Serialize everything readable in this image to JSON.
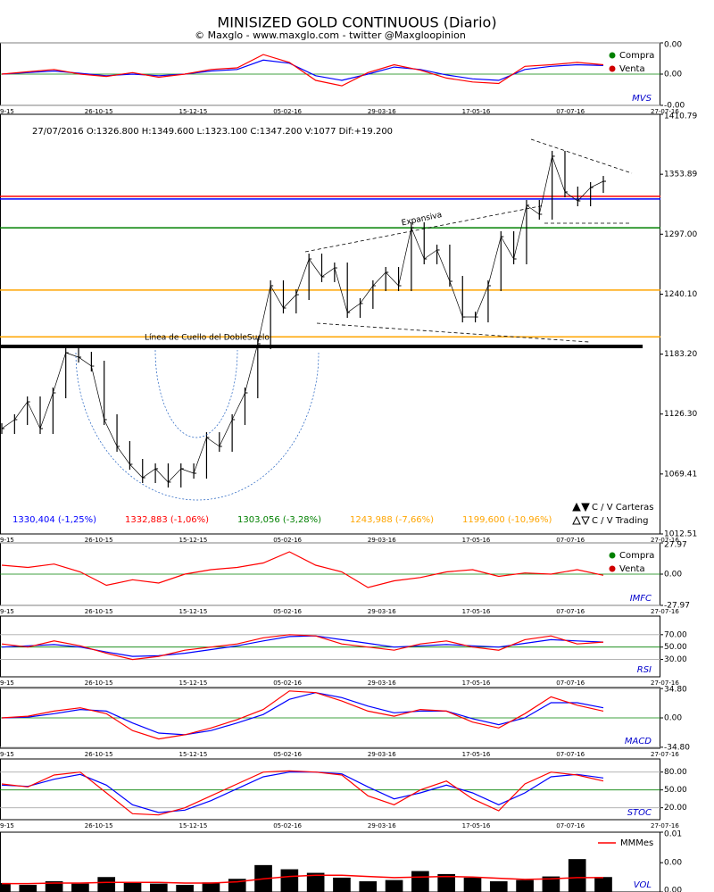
{
  "title": "MINISIZED GOLD CONTINUOUS (Diario)",
  "subtitle": "© Maxglo - www.maxglo.com - twitter @Maxgloopinion",
  "date_axis": [
    "9-15",
    "26-10-15",
    "15-12-15",
    "05-02-16",
    "29-03-16",
    "17-05-16",
    "07-07-16",
    "27-07-16"
  ],
  "chart_data": [
    {
      "type": "line",
      "title": "MVS",
      "ylim": [
        -0.004,
        0.004
      ],
      "yticks": [
        {
          "value": 0.004,
          "label": "0.00"
        },
        {
          "value": 0,
          "label": "0.00"
        },
        {
          "value": -0.004,
          "label": "-0.00"
        }
      ],
      "grid": true,
      "legend": [
        {
          "name": "Compra",
          "color": "#008000"
        },
        {
          "name": "Venta",
          "color": "#d00000"
        }
      ],
      "series": [
        {
          "color": "#0000ff",
          "values": [
            0.0,
            0.0002,
            0.0004,
            0.0001,
            -0.0002,
            0.0,
            -0.0002,
            0.0,
            0.0004,
            0.0006,
            0.0018,
            0.0014,
            -0.0002,
            -0.0008,
            0.0,
            0.0009,
            0.0006,
            -0.0001,
            -0.0006,
            -0.0008,
            0.0006,
            0.001,
            0.0012,
            0.0011
          ]
        },
        {
          "color": "#ff0000",
          "values": [
            0.0,
            0.0003,
            0.0006,
            0.0,
            -0.0003,
            0.0002,
            -0.0004,
            0.0,
            0.0006,
            0.0008,
            0.0025,
            0.0015,
            -0.0008,
            -0.0015,
            0.0002,
            0.0012,
            0.0005,
            -0.0005,
            -0.001,
            -0.0012,
            0.001,
            0.0012,
            0.0015,
            0.0012
          ]
        }
      ]
    },
    {
      "type": "price",
      "info": "27/07/2016  O:1326.800  H:1349.600  L:1323.100  C:1347.200  V:1077  Dif:+19.200",
      "ylim": [
        1012.51,
        1410.79
      ],
      "yticks": [
        1410.79,
        1353.89,
        {
          "value": 1297,
          "label": "1297.00"
        },
        {
          "value": 1240.1,
          "label": "1240.10"
        },
        {
          "value": 1183.2,
          "label": "1183.20"
        },
        {
          "value": 1126.3,
          "label": "1126.30"
        },
        1069.41,
        1012.51
      ],
      "grid": false,
      "color": "#000000",
      "values": [
        1112.5,
        1121.0,
        1137.9,
        1112.5,
        1146.4,
        1184.5,
        1180.3,
        1171.8,
        1121.0,
        1095.6,
        1078.6,
        1065.9,
        1074.4,
        1061.7,
        1074.4,
        1070.1,
        1104.0,
        1095.6,
        1121.0,
        1146.4,
        1193.0,
        1248.1,
        1226.9,
        1239.6,
        1273.5,
        1256.6,
        1265.0,
        1222.7,
        1231.2,
        1248.1,
        1260.8,
        1248.1,
        1303.2,
        1273.5,
        1282.0,
        1252.3,
        1218.4,
        1218.4,
        1248.1,
        1294.7,
        1273.5,
        1324.4,
        1315.9,
        1371.0,
        1337.1,
        1328.6,
        1341.3,
        1347.2
      ],
      "levels": [
        {
          "value": 1330.404,
          "label": "1330,404 (-1,25%)",
          "color": "#0000ff"
        },
        {
          "value": 1332.883,
          "label": "1332,883 (-1,06%)",
          "color": "#ff0000"
        },
        {
          "value": 1303.056,
          "label": "1303,056 (-3,28%)",
          "color": "#008000"
        },
        {
          "value": 1243.988,
          "label": "1243,988 (-7,66%)",
          "color": "#ffa500"
        },
        {
          "value": 1199.6,
          "label": "1199,600 (-10,96%)",
          "color": "#ffa500"
        }
      ],
      "annotations": [
        "Expansiva",
        "Línea de Cuello del DobleSuelo"
      ],
      "legend": [
        "C / V Carteras",
        "C / V Trading"
      ]
    },
    {
      "type": "line",
      "title": "IMFC",
      "ylim": [
        -27.97,
        27.97
      ],
      "yticks": [
        27.97,
        {
          "value": 0,
          "label": "0.00"
        },
        -27.97
      ],
      "grid": true,
      "legend": [
        {
          "name": "Compra",
          "color": "#008000"
        },
        {
          "name": "Venta",
          "color": "#d00000"
        }
      ],
      "series": [
        {
          "color": "#ff0000",
          "values": [
            8,
            6,
            9,
            2,
            -10,
            -5,
            -8,
            0,
            4,
            6,
            10,
            20,
            8,
            2,
            -12,
            -6,
            -3,
            2,
            4,
            -2,
            1,
            0,
            4,
            -1
          ]
        }
      ]
    },
    {
      "type": "line",
      "title": "RSI",
      "ylim": [
        2,
        100
      ],
      "yticks": [
        {
          "value": 70,
          "label": "70.00"
        },
        {
          "value": 50,
          "label": "50.00"
        },
        {
          "value": 30,
          "label": "30.00"
        }
      ],
      "grid": true,
      "series": [
        {
          "color": "#0000ff",
          "values": [
            50,
            52,
            54,
            50,
            42,
            35,
            36,
            40,
            46,
            52,
            60,
            67,
            68,
            62,
            56,
            50,
            52,
            54,
            52,
            50,
            56,
            62,
            60,
            58
          ]
        },
        {
          "color": "#ff0000",
          "values": [
            55,
            50,
            60,
            52,
            40,
            30,
            35,
            45,
            50,
            55,
            65,
            70,
            68,
            55,
            50,
            45,
            55,
            60,
            50,
            45,
            62,
            68,
            55,
            58
          ]
        }
      ]
    },
    {
      "type": "line",
      "title": "MACD",
      "ylim": [
        -36,
        36
      ],
      "yticks": [
        {
          "value": 34.8,
          "label": "34.80"
        },
        {
          "value": 0,
          "label": "0.00"
        },
        {
          "value": -34.8,
          "label": "-34.80"
        }
      ],
      "grid": true,
      "series": [
        {
          "color": "#0000ff",
          "values": [
            0,
            1,
            5,
            10,
            8,
            -6,
            -18,
            -20,
            -15,
            -6,
            4,
            22,
            30,
            24,
            14,
            6,
            8,
            8,
            -1,
            -8,
            0,
            18,
            18,
            12
          ]
        },
        {
          "color": "#ff0000",
          "values": [
            0,
            2,
            8,
            12,
            5,
            -15,
            -25,
            -20,
            -12,
            -2,
            10,
            32,
            30,
            20,
            8,
            2,
            10,
            8,
            -5,
            -12,
            5,
            25,
            15,
            8
          ]
        }
      ]
    },
    {
      "type": "line",
      "title": "STOC",
      "ylim": [
        0,
        102
      ],
      "yticks": [
        {
          "value": 80,
          "label": "80.00"
        },
        {
          "value": 50,
          "label": "50.00"
        },
        {
          "value": 20,
          "label": "20.00"
        }
      ],
      "grid": true,
      "series": [
        {
          "color": "#0000ff",
          "values": [
            58,
            56,
            68,
            76,
            58,
            25,
            12,
            16,
            32,
            52,
            72,
            80,
            80,
            77,
            55,
            35,
            45,
            58,
            45,
            25,
            45,
            72,
            76,
            70
          ]
        },
        {
          "color": "#ff0000",
          "values": [
            60,
            55,
            75,
            80,
            45,
            10,
            8,
            20,
            40,
            60,
            80,
            82,
            80,
            75,
            40,
            25,
            50,
            65,
            35,
            15,
            60,
            80,
            75,
            65
          ]
        }
      ]
    },
    {
      "type": "bar",
      "title": "VOL",
      "ylim": [
        0,
        0.01
      ],
      "yticks": [
        0.01,
        {
          "value": 0.0049,
          "label": "0.00"
        },
        {
          "value": 0,
          "label": "0.00"
        }
      ],
      "grid": false,
      "color": "#000000",
      "values": [
        0.0015,
        0.0012,
        0.0018,
        0.0014,
        0.0025,
        0.0016,
        0.0014,
        0.0012,
        0.0016,
        0.0022,
        0.0045,
        0.0038,
        0.0032,
        0.0024,
        0.0018,
        0.002,
        0.0035,
        0.003,
        0.0024,
        0.0018,
        0.002,
        0.0026,
        0.0055,
        0.0025
      ],
      "series": [
        {
          "name": "MMMes",
          "color": "#ff0000",
          "values": [
            0.0014,
            0.0014,
            0.0015,
            0.0015,
            0.0016,
            0.0016,
            0.0016,
            0.0015,
            0.0015,
            0.0017,
            0.0022,
            0.0026,
            0.0028,
            0.0028,
            0.0026,
            0.0024,
            0.0025,
            0.0026,
            0.0025,
            0.0023,
            0.0021,
            0.0022,
            0.0024,
            0.0024
          ]
        }
      ]
    }
  ]
}
